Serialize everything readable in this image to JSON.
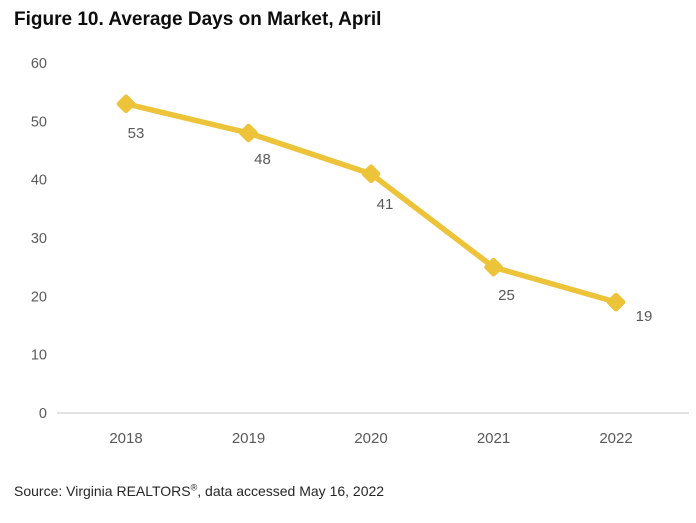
{
  "figure": {
    "title": "Figure 10. Average Days on Market, April",
    "source": {
      "prefix": "Source: Virginia REALTORS",
      "registered_mark": "®",
      "suffix": ", data accessed May 16, 2022"
    }
  },
  "chart_data": {
    "type": "line",
    "title": "Figure 10. Average Days on Market, April",
    "categories": [
      "2018",
      "2019",
      "2020",
      "2021",
      "2022"
    ],
    "series": [
      {
        "name": "Average Days on Market",
        "values": [
          53,
          48,
          41,
          25,
          19
        ]
      }
    ],
    "data_labels": [
      "53",
      "48",
      "41",
      "25",
      "19"
    ],
    "xlabel": "",
    "ylabel": "",
    "ylim": [
      0,
      60
    ],
    "yticks": [
      0,
      10,
      20,
      30,
      40,
      50,
      60
    ],
    "grid": false,
    "legend": false,
    "marker": "diamond",
    "colors": {
      "line": "#ECC339",
      "marker": "#ECC339",
      "axis_line": "#D9D9D9",
      "tick_label": "#595959",
      "data_label": "#595959",
      "title": "#0D0D0D",
      "source_text": "#262626"
    }
  }
}
